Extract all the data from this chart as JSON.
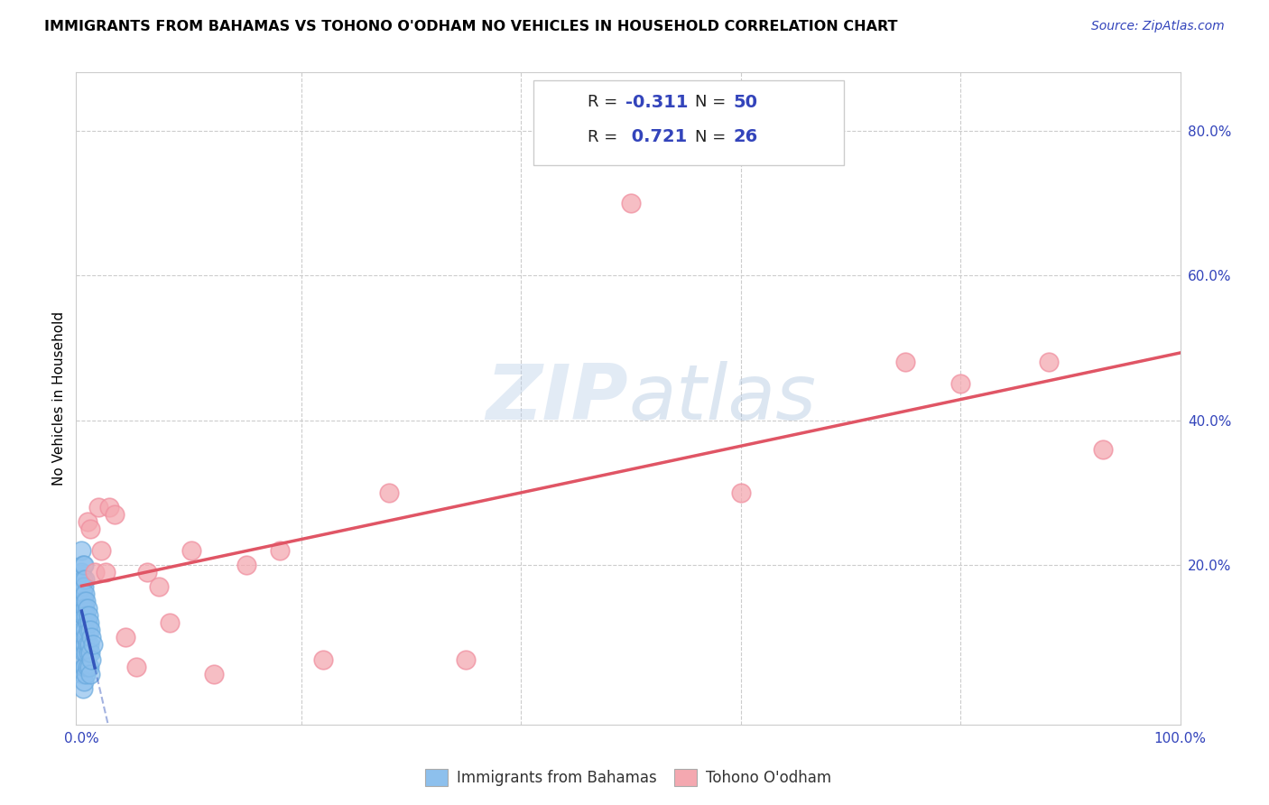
{
  "title": "IMMIGRANTS FROM BAHAMAS VS TOHONO O'ODHAM NO VEHICLES IN HOUSEHOLD CORRELATION CHART",
  "source": "Source: ZipAtlas.com",
  "ylabel": "No Vehicles in Household",
  "xlim": [
    -0.005,
    1.0
  ],
  "ylim": [
    -0.02,
    0.88
  ],
  "x_ticks": [
    0.0,
    0.2,
    0.4,
    0.6,
    0.8,
    1.0
  ],
  "y_ticks_right": [
    0.2,
    0.4,
    0.6,
    0.8
  ],
  "y_tick_labels_right": [
    "20.0%",
    "40.0%",
    "60.0%",
    "80.0%"
  ],
  "legend_R_blue": "-0.311",
  "legend_N_blue": "50",
  "legend_R_pink": "0.721",
  "legend_N_pink": "26",
  "blue_color": "#8DC0ED",
  "pink_color": "#F4A8B0",
  "blue_edge_color": "#6AAADE",
  "pink_edge_color": "#F090A0",
  "blue_line_color": "#3355BB",
  "pink_line_color": "#E05565",
  "watermark_zip": "ZIP",
  "watermark_atlas": "atlas",
  "blue_x": [
    0.0,
    0.0,
    0.0,
    0.0,
    0.0,
    0.001,
    0.001,
    0.001,
    0.001,
    0.001,
    0.001,
    0.001,
    0.001,
    0.001,
    0.001,
    0.002,
    0.002,
    0.002,
    0.002,
    0.002,
    0.002,
    0.002,
    0.002,
    0.003,
    0.003,
    0.003,
    0.003,
    0.003,
    0.003,
    0.004,
    0.004,
    0.004,
    0.004,
    0.004,
    0.005,
    0.005,
    0.005,
    0.005,
    0.006,
    0.006,
    0.006,
    0.007,
    0.007,
    0.007,
    0.008,
    0.008,
    0.008,
    0.009,
    0.009,
    0.01
  ],
  "blue_y": [
    0.22,
    0.19,
    0.17,
    0.15,
    0.12,
    0.2,
    0.18,
    0.16,
    0.14,
    0.13,
    0.11,
    0.09,
    0.07,
    0.05,
    0.03,
    0.2,
    0.17,
    0.15,
    0.13,
    0.1,
    0.08,
    0.06,
    0.04,
    0.18,
    0.16,
    0.14,
    0.11,
    0.09,
    0.06,
    0.15,
    0.13,
    0.1,
    0.08,
    0.05,
    0.14,
    0.12,
    0.09,
    0.06,
    0.13,
    0.11,
    0.08,
    0.12,
    0.09,
    0.06,
    0.11,
    0.08,
    0.05,
    0.1,
    0.07,
    0.09
  ],
  "pink_x": [
    0.005,
    0.008,
    0.012,
    0.015,
    0.018,
    0.022,
    0.025,
    0.03,
    0.04,
    0.05,
    0.06,
    0.07,
    0.08,
    0.1,
    0.12,
    0.15,
    0.18,
    0.22,
    0.28,
    0.35,
    0.5,
    0.6,
    0.75,
    0.8,
    0.88,
    0.93
  ],
  "pink_y": [
    0.26,
    0.25,
    0.19,
    0.28,
    0.22,
    0.19,
    0.28,
    0.27,
    0.1,
    0.06,
    0.19,
    0.17,
    0.12,
    0.22,
    0.05,
    0.2,
    0.22,
    0.07,
    0.3,
    0.07,
    0.7,
    0.3,
    0.48,
    0.45,
    0.48,
    0.36
  ]
}
